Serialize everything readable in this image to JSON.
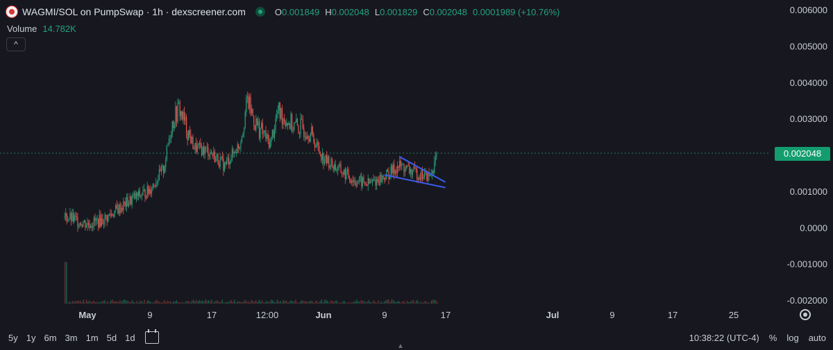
{
  "header": {
    "title": "WAGMI/SOL on PumpSwap · 1h · dexscreener.com",
    "ohlc": [
      {
        "k": "O",
        "v": "0.001849"
      },
      {
        "k": "H",
        "v": "0.002048"
      },
      {
        "k": "L",
        "v": "0.001829"
      },
      {
        "k": "C",
        "v": "0.002048"
      }
    ],
    "change": "0.0001989 (+10.76%)",
    "volume_label": "Volume",
    "volume_value": "14.782K",
    "collapse_icon": "^"
  },
  "price_tag": "0.002048",
  "chart_data": {
    "type": "line",
    "y_ticks": [
      "0.006000",
      "0.005000",
      "0.004000",
      "0.003000",
      "0.002000",
      "0.001000",
      "0.0000",
      "-0.001000",
      "-0.002000"
    ],
    "ylim": [
      -0.002,
      0.006
    ],
    "x_ticks": [
      "May",
      "9",
      "17",
      "12:00",
      "Jun",
      "9",
      "17",
      "Jul",
      "9",
      "17",
      "25"
    ],
    "last_price": 0.002048,
    "series": [
      {
        "x": [
          "Apr 28",
          "May 1",
          "May 3",
          "May 5",
          "May 7",
          "May 9",
          "May 11",
          "May 12",
          "May 13",
          "May 15",
          "May 17",
          "May 19",
          "May 21",
          "May 22",
          "May 23",
          "May 24",
          "May 25",
          "May 26",
          "May 28",
          "May 30",
          "Jun 1",
          "Jun 3",
          "Jun 5",
          "Jun 7",
          "Jun 9",
          "Jun 11",
          "Jun 13",
          "Jun 15",
          "Jun 16"
        ],
        "y": [
          0.0003,
          0.0001,
          0.0002,
          0.0005,
          0.0008,
          0.001,
          0.0016,
          0.0028,
          0.0033,
          0.0022,
          0.0021,
          0.0017,
          0.0023,
          0.0035,
          0.0029,
          0.0026,
          0.0023,
          0.0032,
          0.0028,
          0.0027,
          0.0019,
          0.0016,
          0.0013,
          0.0012,
          0.0014,
          0.0017,
          0.0015,
          0.0014,
          0.002048
        ]
      }
    ],
    "trendlines": [
      {
        "x1": "Jun 11",
        "y1": 0.00195,
        "x2": "Jun 17",
        "y2": 0.00125
      },
      {
        "x1": "Jun 9",
        "y1": 0.00145,
        "x2": "Jun 17",
        "y2": 0.0011
      }
    ],
    "colors": {
      "up": "#26a17b",
      "down": "#ef5350",
      "trend": "#3b5cf0",
      "grid": "#22242c",
      "axis_text": "#c9ccd4"
    }
  },
  "bottom": {
    "timeframes": [
      "5y",
      "1y",
      "6m",
      "3m",
      "1m",
      "5d",
      "1d"
    ],
    "time": "10:38:22 (UTC-4)",
    "percent": "%",
    "log": "log",
    "auto": "auto"
  }
}
